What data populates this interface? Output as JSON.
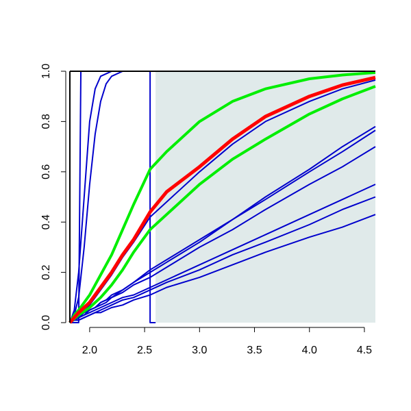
{
  "chart_data": {
    "type": "line",
    "xlim": [
      1.82,
      4.6
    ],
    "ylim": [
      0,
      1
    ],
    "xticks": [
      {
        "value": 2,
        "label": "2.0"
      },
      2.5,
      {
        "value": 3,
        "label": "3.0"
      },
      3.5,
      {
        "value": 4,
        "label": "4.0"
      },
      4.5
    ],
    "yticks": [
      {
        "value": 0,
        "label": "0.0"
      },
      0.2,
      0.4,
      0.6,
      0.8,
      {
        "value": 1,
        "label": "1.0"
      }
    ],
    "shade_xlim": [
      2.6,
      4.6
    ],
    "shade_color": "#e0eaea",
    "x": [
      1.82,
      1.86,
      1.9,
      1.95,
      2.0,
      2.05,
      2.1,
      2.15,
      2.2,
      2.3,
      2.4,
      2.55,
      2.7,
      3.0,
      3.3,
      3.6,
      4.0,
      4.3,
      4.6
    ],
    "series": [
      {
        "color": "#0000cc",
        "x": [
          1.82,
          1.9,
          1.92,
          2.55,
          2.55,
          2.6
        ],
        "values": [
          0,
          0,
          1,
          1,
          0,
          0
        ]
      },
      {
        "color": "#0000cc",
        "values": [
          0,
          0.05,
          0.2,
          0.5,
          0.8,
          0.93,
          0.98,
          0.99,
          1,
          1,
          1,
          1,
          1,
          1,
          1,
          1,
          1,
          1,
          1
        ]
      },
      {
        "color": "#0000cc",
        "values": [
          0,
          0.03,
          0.1,
          0.3,
          0.55,
          0.75,
          0.88,
          0.95,
          0.98,
          1,
          1,
          1,
          1,
          1,
          1,
          1,
          1,
          1,
          1
        ]
      },
      {
        "color": "#0000cc",
        "values": [
          0,
          0.015,
          0.03,
          0.05,
          0.07,
          0.1,
          0.13,
          0.16,
          0.19,
          0.26,
          0.32,
          0.42,
          0.48,
          0.6,
          0.71,
          0.8,
          0.88,
          0.93,
          0.965
        ]
      },
      {
        "color": "#0000cc",
        "values": [
          0,
          0.01,
          0.02,
          0.04,
          0.05,
          0.06,
          0.08,
          0.09,
          0.11,
          0.13,
          0.16,
          0.21,
          0.25,
          0.33,
          0.41,
          0.5,
          0.61,
          0.7,
          0.78
        ]
      },
      {
        "color": "#0000cc",
        "values": [
          0,
          0.01,
          0.02,
          0.04,
          0.05,
          0.06,
          0.08,
          0.09,
          0.1,
          0.13,
          0.16,
          0.2,
          0.24,
          0.32,
          0.41,
          0.49,
          0.6,
          0.68,
          0.765
        ]
      },
      {
        "color": "#0000cc",
        "values": [
          0,
          0.01,
          0.02,
          0.03,
          0.05,
          0.06,
          0.07,
          0.08,
          0.1,
          0.12,
          0.15,
          0.18,
          0.22,
          0.3,
          0.37,
          0.45,
          0.55,
          0.62,
          0.7
        ]
      },
      {
        "color": "#0000cc",
        "values": [
          0,
          0.01,
          0.02,
          0.03,
          0.04,
          0.05,
          0.06,
          0.07,
          0.08,
          0.1,
          0.11,
          0.14,
          0.17,
          0.23,
          0.29,
          0.35,
          0.43,
          0.49,
          0.55
        ]
      },
      {
        "color": "#0000cc",
        "values": [
          0,
          0.01,
          0.01,
          0.02,
          0.03,
          0.04,
          0.05,
          0.06,
          0.07,
          0.09,
          0.1,
          0.13,
          0.16,
          0.21,
          0.27,
          0.32,
          0.39,
          0.45,
          0.5
        ]
      },
      {
        "color": "#0000cc",
        "values": [
          0,
          0.01,
          0.01,
          0.02,
          0.03,
          0.04,
          0.04,
          0.05,
          0.06,
          0.07,
          0.09,
          0.11,
          0.14,
          0.18,
          0.23,
          0.28,
          0.34,
          0.38,
          0.43
        ]
      },
      {
        "color": "#00ee00",
        "width": 4,
        "values": [
          0,
          0.03,
          0.05,
          0.08,
          0.11,
          0.15,
          0.19,
          0.23,
          0.27,
          0.37,
          0.47,
          0.61,
          0.68,
          0.8,
          0.88,
          0.93,
          0.97,
          0.985,
          0.995
        ]
      },
      {
        "color": "#00ee00",
        "width": 4,
        "values": [
          0,
          0.015,
          0.03,
          0.045,
          0.06,
          0.08,
          0.1,
          0.125,
          0.15,
          0.21,
          0.28,
          0.37,
          0.43,
          0.55,
          0.65,
          0.73,
          0.83,
          0.89,
          0.94
        ]
      },
      {
        "color": "#ff0000",
        "width": 5,
        "values": [
          0,
          0.02,
          0.04,
          0.06,
          0.08,
          0.11,
          0.14,
          0.17,
          0.2,
          0.27,
          0.33,
          0.44,
          0.52,
          0.62,
          0.73,
          0.82,
          0.9,
          0.945,
          0.975
        ]
      }
    ]
  }
}
